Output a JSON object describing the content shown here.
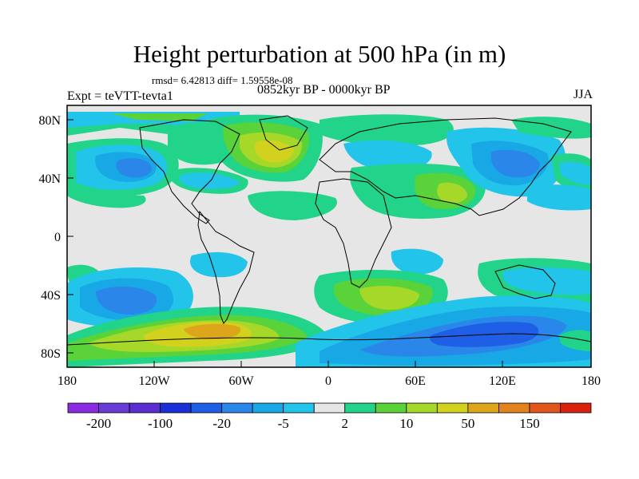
{
  "title": "Height perturbation at 500 hPa (in m)",
  "stats": "rmsd= 6.42813 diff= 1.59558e-08",
  "experiment": "Expt = teVTT-tevta1",
  "period": "0852kyr BP - 0000kyr BP",
  "season": "JJA",
  "y_axis": {
    "ticks": [
      "80N",
      "40N",
      "0",
      "40S",
      "80S"
    ],
    "values": [
      80,
      40,
      0,
      -40,
      -80
    ]
  },
  "x_axis": {
    "ticks": [
      "180",
      "120W",
      "60W",
      "0",
      "60E",
      "120E",
      "180"
    ],
    "values": [
      -180,
      -120,
      -60,
      0,
      60,
      120,
      180
    ]
  },
  "colorbar": {
    "colors": [
      "#8a2be2",
      "#6a3cd6",
      "#5a2ed0",
      "#1a2fd8",
      "#1f5fe6",
      "#2a86e8",
      "#18a8e6",
      "#22c4ea",
      "#e6e6e6",
      "#22d38a",
      "#5ad23a",
      "#a6d82a",
      "#d2d21e",
      "#dca51a",
      "#e2831c",
      "#e0561c",
      "#d8220e"
    ],
    "labels": [
      "-200",
      "-100",
      "-20",
      "-5",
      "2",
      "10",
      "50",
      "150"
    ]
  },
  "colors": {
    "neutral": "#e6e6e6",
    "c1": "#22c4ea",
    "c2": "#18a8e6",
    "c3": "#2a86e8",
    "c4": "#1f5fe6",
    "c5": "#1a2fd8",
    "p1": "#22d38a",
    "p2": "#5ad23a",
    "p3": "#a6d82a",
    "p4": "#d2d21e",
    "p5": "#dca51a"
  }
}
